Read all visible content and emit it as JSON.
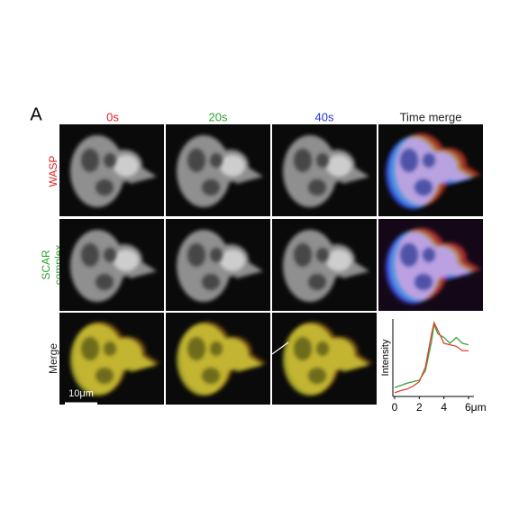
{
  "panel_label": "A",
  "column_headers": [
    "0s",
    "20s",
    "40s",
    "Time merge"
  ],
  "row_labels": [
    [
      "WASP"
    ],
    [
      "SCAR",
      "complex"
    ],
    [
      "Merge"
    ]
  ],
  "scale_bar": "10μm",
  "chart_data": {
    "type": "line",
    "ylabel": "Intensity",
    "x": [
      0,
      0.5,
      1,
      1.5,
      2,
      2.5,
      3,
      3.2,
      3.5,
      4,
      4.5,
      5,
      5.5,
      6
    ],
    "series": [
      {
        "color": "#3aa13a",
        "values": [
          0.12,
          0.15,
          0.18,
          0.2,
          0.22,
          0.35,
          0.75,
          0.98,
          0.85,
          0.8,
          0.72,
          0.8,
          0.72,
          0.7
        ]
      },
      {
        "color": "#e0402a",
        "values": [
          0.05,
          0.08,
          0.1,
          0.14,
          0.2,
          0.4,
          0.85,
          1.0,
          0.9,
          0.72,
          0.7,
          0.68,
          0.62,
          0.62
        ]
      }
    ],
    "xlim": [
      0,
      6
    ],
    "xticks": [
      0,
      2,
      4,
      {
        "value": 6,
        "label": "6μm"
      }
    ],
    "ylim": [
      0,
      1.05
    ]
  }
}
